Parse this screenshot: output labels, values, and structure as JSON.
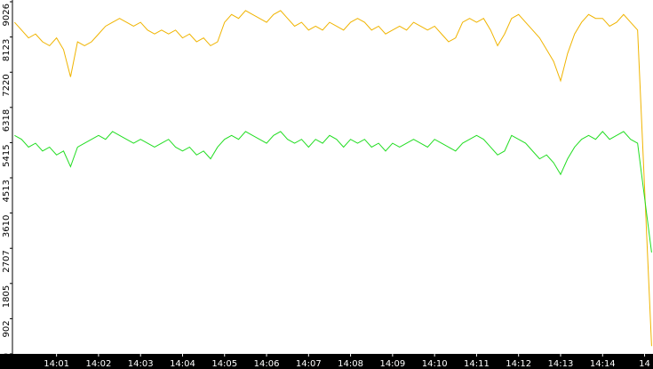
{
  "chart_data": {
    "type": "line",
    "x": [
      0,
      10,
      20,
      30,
      40,
      50,
      60,
      70,
      80,
      90,
      100,
      110,
      120,
      130,
      140,
      150,
      160,
      170,
      180,
      190,
      200,
      210,
      220,
      230,
      240,
      250,
      260,
      270,
      280,
      290,
      300,
      310,
      320,
      330,
      340,
      350,
      360,
      370,
      380,
      390,
      400,
      410,
      420,
      430,
      440,
      450,
      460,
      470,
      480,
      490,
      500,
      510,
      520,
      530,
      540,
      550,
      560,
      570,
      580,
      590,
      600,
      610,
      620,
      630,
      640,
      650,
      660,
      670,
      680,
      690,
      700,
      710,
      720,
      730,
      740,
      750,
      760,
      770,
      780,
      790,
      800,
      810,
      820,
      830,
      840,
      850,
      860,
      870,
      880,
      890,
      910
    ],
    "series": [
      {
        "color": "#f0b400",
        "values": [
          8500,
          8300,
          8100,
          8200,
          8000,
          7900,
          8100,
          7800,
          7100,
          8000,
          7900,
          8000,
          8200,
          8400,
          8500,
          8600,
          8500,
          8400,
          8500,
          8300,
          8200,
          8300,
          8200,
          8300,
          8100,
          8200,
          8000,
          8100,
          7900,
          8000,
          8500,
          8700,
          8600,
          8800,
          8700,
          8600,
          8500,
          8700,
          8800,
          8600,
          8400,
          8500,
          8300,
          8400,
          8300,
          8500,
          8400,
          8300,
          8500,
          8600,
          8500,
          8300,
          8400,
          8200,
          8300,
          8400,
          8300,
          8500,
          8400,
          8300,
          8400,
          8200,
          8000,
          8100,
          8500,
          8600,
          8500,
          8600,
          8300,
          7900,
          8200,
          8600,
          8700,
          8500,
          8300,
          8100,
          7800,
          7500,
          7000,
          7700,
          8200,
          8500,
          8700,
          8600,
          8600,
          8400,
          8500,
          8700,
          8500,
          8300,
          200
        ]
      },
      {
        "color": "#22dd22",
        "values": [
          5600,
          5500,
          5300,
          5400,
          5200,
          5300,
          5100,
          5200,
          4800,
          5300,
          5400,
          5500,
          5600,
          5500,
          5700,
          5600,
          5500,
          5400,
          5500,
          5400,
          5300,
          5400,
          5500,
          5300,
          5200,
          5300,
          5100,
          5200,
          5000,
          5300,
          5500,
          5600,
          5500,
          5700,
          5600,
          5500,
          5400,
          5600,
          5700,
          5500,
          5400,
          5500,
          5300,
          5500,
          5400,
          5600,
          5500,
          5300,
          5500,
          5400,
          5500,
          5300,
          5400,
          5200,
          5400,
          5300,
          5400,
          5500,
          5400,
          5300,
          5500,
          5400,
          5300,
          5200,
          5400,
          5500,
          5600,
          5500,
          5300,
          5100,
          5200,
          5600,
          5500,
          5400,
          5200,
          5000,
          5100,
          4900,
          4600,
          5000,
          5300,
          5500,
          5600,
          5500,
          5700,
          5500,
          5600,
          5700,
          5500,
          5400,
          2600
        ]
      }
    ],
    "xlim": [
      -3,
      912
    ],
    "xticks": [
      {
        "value": 60,
        "label": "14:01"
      },
      {
        "value": 120,
        "label": "14:02"
      },
      {
        "value": 180,
        "label": "14:03"
      },
      {
        "value": 240,
        "label": "14:04"
      },
      {
        "value": 300,
        "label": "14:05"
      },
      {
        "value": 360,
        "label": "14:06"
      },
      {
        "value": 420,
        "label": "14:07"
      },
      {
        "value": 480,
        "label": "14:08"
      },
      {
        "value": 540,
        "label": "14:09"
      },
      {
        "value": 600,
        "label": "14:10"
      },
      {
        "value": 660,
        "label": "14:11"
      },
      {
        "value": 720,
        "label": "14:12"
      },
      {
        "value": 780,
        "label": "14:13"
      },
      {
        "value": 840,
        "label": "14:14"
      },
      {
        "value": 900,
        "label": "14"
      }
    ],
    "ylim": [
      0,
      9026
    ],
    "yticks": [
      0,
      902,
      1805,
      2707,
      3610,
      4513,
      5415,
      6318,
      7220,
      8123,
      9026
    ]
  }
}
